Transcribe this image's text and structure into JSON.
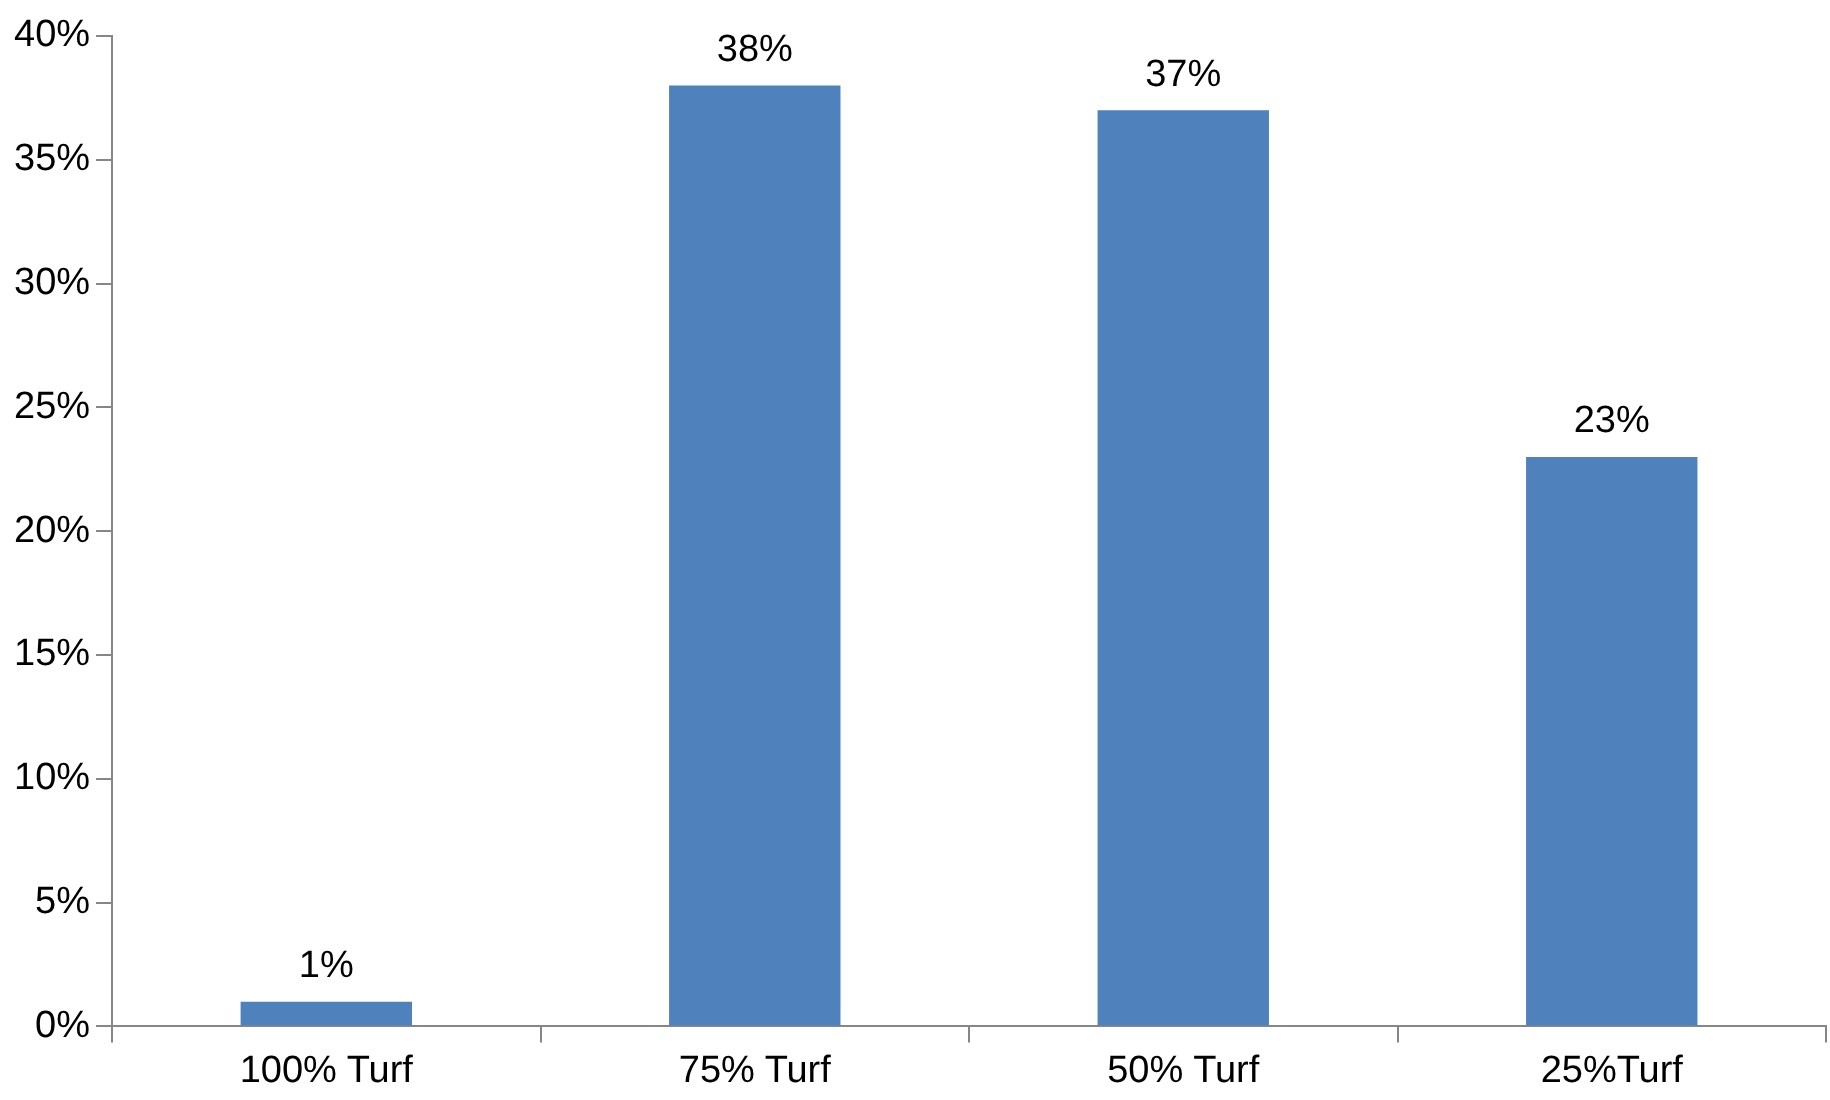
{
  "chart_data": {
    "type": "bar",
    "categories": [
      "100% Turf",
      "75% Turf",
      "50% Turf",
      "25%Turf"
    ],
    "values": [
      1,
      38,
      37,
      23
    ],
    "color": "#4f81bd",
    "value_labels": [
      "1%",
      "38%",
      "37%",
      "23%"
    ],
    "ylim": [
      0,
      40
    ],
    "yticks": [
      {
        "value": 0,
        "label": "0%"
      },
      {
        "value": 5,
        "label": "5%"
      },
      {
        "value": 10,
        "label": "10%"
      },
      {
        "value": 15,
        "label": "15%"
      },
      {
        "value": 20,
        "label": "20%"
      },
      {
        "value": 25,
        "label": "25%"
      },
      {
        "value": 30,
        "label": "30%"
      },
      {
        "value": 35,
        "label": "35%"
      },
      {
        "value": 40,
        "label": "40%"
      }
    ],
    "grid": false,
    "legend": false
  }
}
